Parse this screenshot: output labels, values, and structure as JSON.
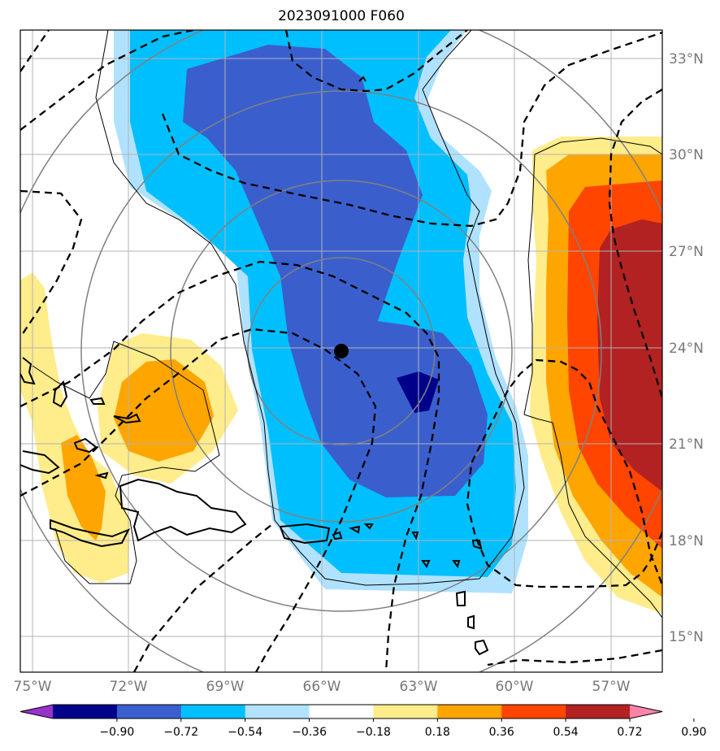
{
  "title": "2023091000 F060",
  "map": {
    "lat_labels": [
      "33°N",
      "30°N",
      "27°N",
      "24°N",
      "21°N",
      "18°N",
      "15°N"
    ],
    "lon_labels": [
      "75°W",
      "72°W",
      "69°W",
      "66°W",
      "63°W",
      "60°W",
      "57°W"
    ],
    "storm_center": {
      "lat": 23.9,
      "lon": -65.3
    }
  },
  "colorbar": {
    "ticks": [
      "-0.90",
      "-0.72",
      "-0.54",
      "-0.36",
      "-0.18",
      "0.18",
      "0.36",
      "0.54",
      "0.72",
      "0.90"
    ],
    "colors": [
      "#9932cc",
      "#00008b",
      "#3a5fcd",
      "#00bfff",
      "#b0e2ff",
      "#ffffff",
      "#ffec8b",
      "#ffa500",
      "#ff4500",
      "#b22222",
      "#ff82ab"
    ]
  }
}
